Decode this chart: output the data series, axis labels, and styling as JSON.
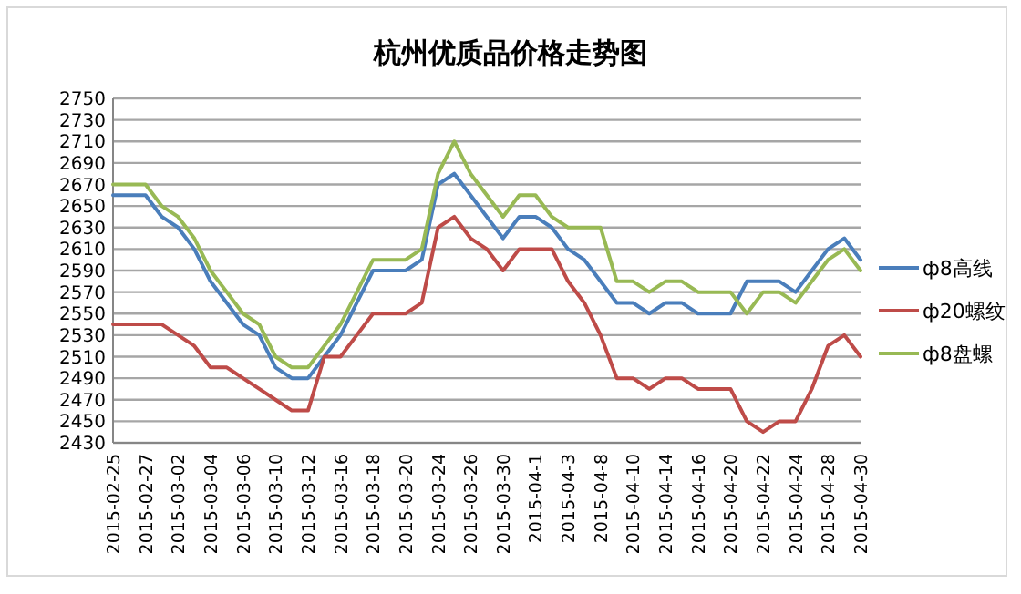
{
  "chart_data": {
    "type": "line",
    "title": "杭州优质品价格走势图",
    "categories": [
      "2015-02-25",
      null,
      "2015-02-27",
      null,
      "2015-03-02",
      null,
      "2015-03-04",
      null,
      "2015-03-06",
      null,
      "2015-03-10",
      null,
      "2015-03-12",
      null,
      "2015-03-16",
      null,
      "2015-03-18",
      null,
      "2015-03-20",
      null,
      "2015-03-24",
      null,
      "2015-03-26",
      null,
      "2015-03-30",
      null,
      "2015-04-1",
      null,
      "2015-04-3",
      null,
      "2015-04-8",
      null,
      "2015-04-10",
      null,
      "2015-04-14",
      null,
      "2015-04-16",
      null,
      "2015-04-20",
      null,
      "2015-04-22",
      null,
      "2015-04-24",
      null,
      "2015-04-28",
      null,
      "2015-04-30"
    ],
    "series": [
      {
        "name": "ф8高线",
        "color": "#4a7ebb",
        "values": [
          2660,
          2660,
          2660,
          2640,
          2630,
          2610,
          2580,
          2560,
          2540,
          2530,
          2500,
          2490,
          2490,
          2510,
          2530,
          2560,
          2590,
          2590,
          2590,
          2600,
          2670,
          2680,
          2660,
          2640,
          2620,
          2640,
          2640,
          2630,
          2610,
          2600,
          2580,
          2560,
          2560,
          2550,
          2560,
          2560,
          2550,
          2550,
          2550,
          2580,
          2580,
          2580,
          2570,
          2590,
          2610,
          2620,
          2600
        ]
      },
      {
        "name": "ф20螺纹",
        "color": "#be4b48",
        "values": [
          2540,
          2540,
          2540,
          2540,
          2530,
          2520,
          2500,
          2500,
          2490,
          2480,
          2470,
          2460,
          2460,
          2510,
          2510,
          2530,
          2550,
          2550,
          2550,
          2560,
          2630,
          2640,
          2620,
          2610,
          2590,
          2610,
          2610,
          2610,
          2580,
          2560,
          2530,
          2490,
          2490,
          2480,
          2490,
          2490,
          2480,
          2480,
          2480,
          2450,
          2440,
          2450,
          2450,
          2480,
          2520,
          2530,
          2510
        ]
      },
      {
        "name": "ф8盘螺",
        "color": "#98b954",
        "values": [
          2670,
          2670,
          2670,
          2650,
          2640,
          2620,
          2590,
          2570,
          2550,
          2540,
          2510,
          2500,
          2500,
          2520,
          2540,
          2570,
          2600,
          2600,
          2600,
          2610,
          2680,
          2710,
          2680,
          2660,
          2640,
          2660,
          2660,
          2640,
          2630,
          2630,
          2630,
          2580,
          2580,
          2570,
          2580,
          2580,
          2570,
          2570,
          2570,
          2550,
          2570,
          2570,
          2560,
          2580,
          2600,
          2610,
          2590
        ]
      }
    ],
    "ylim": [
      2430,
      2750
    ],
    "yticks": [
      2430,
      2450,
      2470,
      2490,
      2510,
      2530,
      2550,
      2570,
      2590,
      2610,
      2630,
      2650,
      2670,
      2690,
      2710,
      2730,
      2750
    ],
    "grid": "y",
    "legend": "right",
    "marker": "none",
    "line_style": "solid"
  }
}
